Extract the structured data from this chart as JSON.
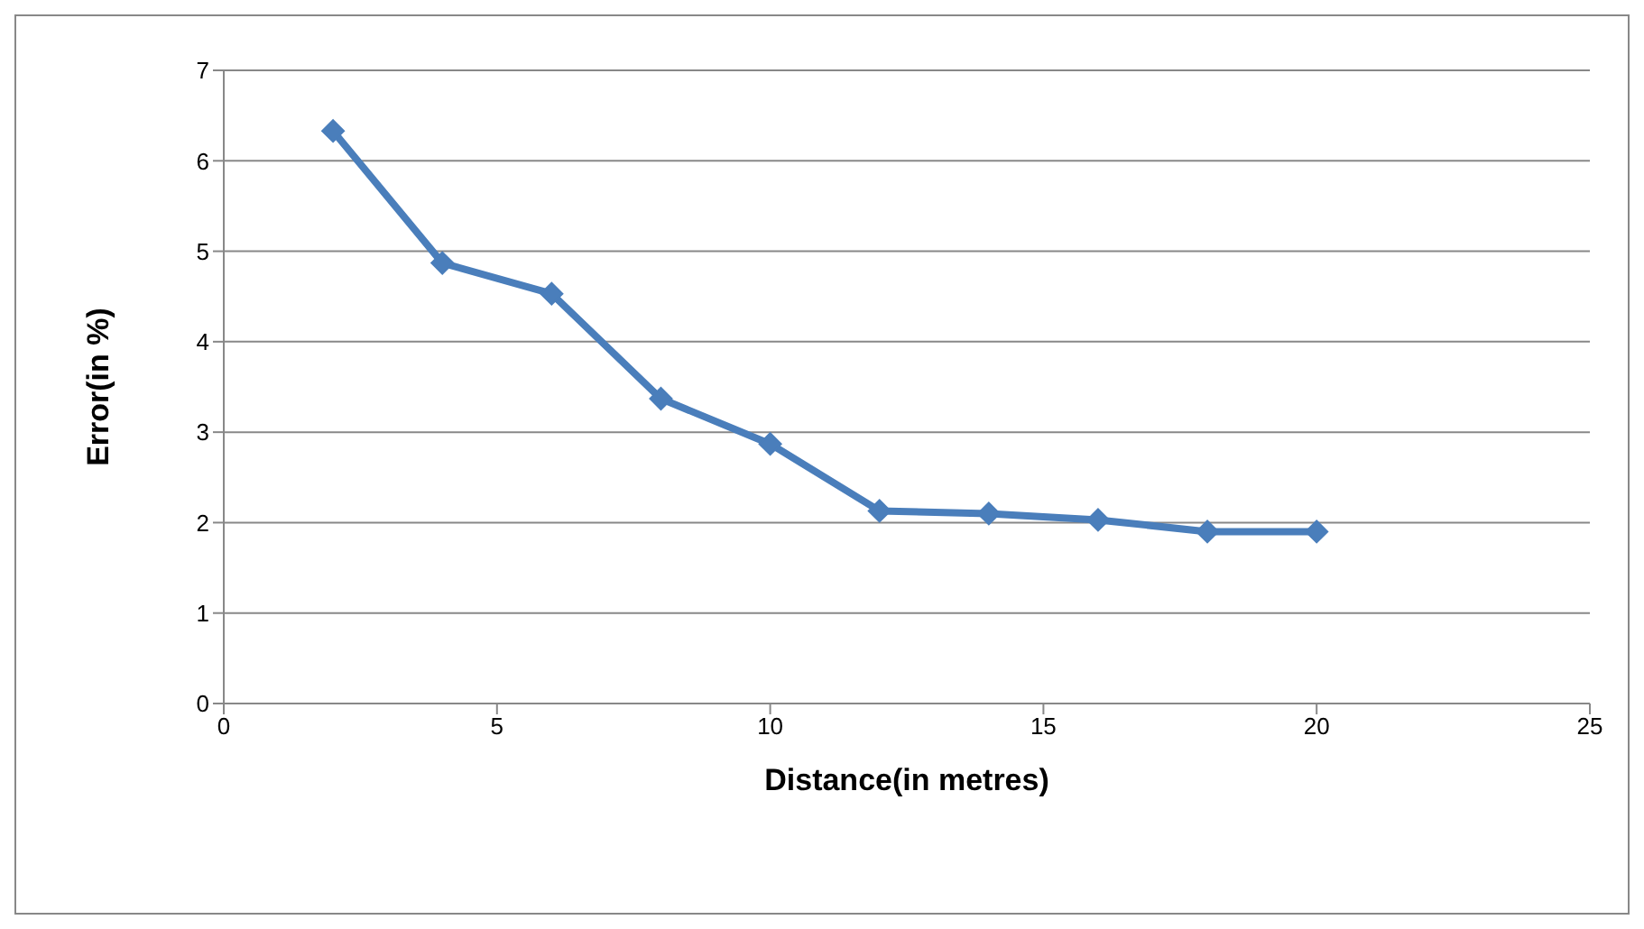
{
  "chart_data": {
    "type": "line",
    "xlabel": "Distance(in metres)",
    "ylabel": "Error(in %)",
    "x": [
      2,
      4,
      6,
      8,
      10,
      12,
      14,
      16,
      18,
      20
    ],
    "series": [
      {
        "color": "#4a7ebb",
        "values": [
          6.33,
          4.87,
          4.53,
          3.37,
          2.87,
          2.13,
          2.1,
          2.03,
          1.9,
          1.9
        ]
      }
    ],
    "xlim": [
      0,
      25
    ],
    "xticks": [
      0,
      5,
      10,
      15,
      20,
      25
    ],
    "ylim": [
      0,
      7
    ],
    "yticks": [
      0,
      1,
      2,
      3,
      4,
      5,
      6,
      7
    ],
    "grid": "y",
    "marker": "diamond",
    "line_style": "solid"
  }
}
